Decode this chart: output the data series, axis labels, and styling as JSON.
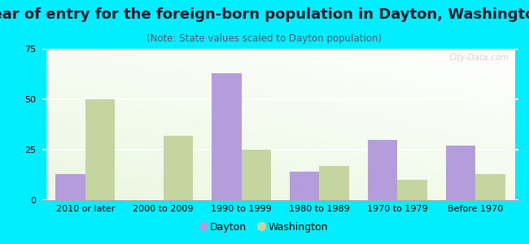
{
  "title": "Year of entry for the foreign-born population in Dayton, Washington",
  "subtitle": "(Note: State values scaled to Dayton population)",
  "categories": [
    "2010 or later",
    "2000 to 2009",
    "1990 to 1999",
    "1980 to 1989",
    "1970 to 1979",
    "Before 1970"
  ],
  "dayton_values": [
    13,
    0,
    63,
    14,
    30,
    27
  ],
  "washington_values": [
    50,
    32,
    25,
    17,
    10,
    13
  ],
  "dayton_color": "#b39ddb",
  "washington_color": "#c5d5a0",
  "background_outer": "#00eeff",
  "background_inner_topleft": "#e8f5e0",
  "background_inner_bottomright": "#ffffff",
  "ylim": [
    0,
    75
  ],
  "yticks": [
    0,
    25,
    50,
    75
  ],
  "bar_width": 0.38,
  "title_fontsize": 13,
  "subtitle_fontsize": 8.5,
  "tick_fontsize": 8,
  "legend_fontsize": 9,
  "title_color": "#1a1a2e",
  "subtitle_color": "#555566",
  "watermark": "City-Data.com"
}
